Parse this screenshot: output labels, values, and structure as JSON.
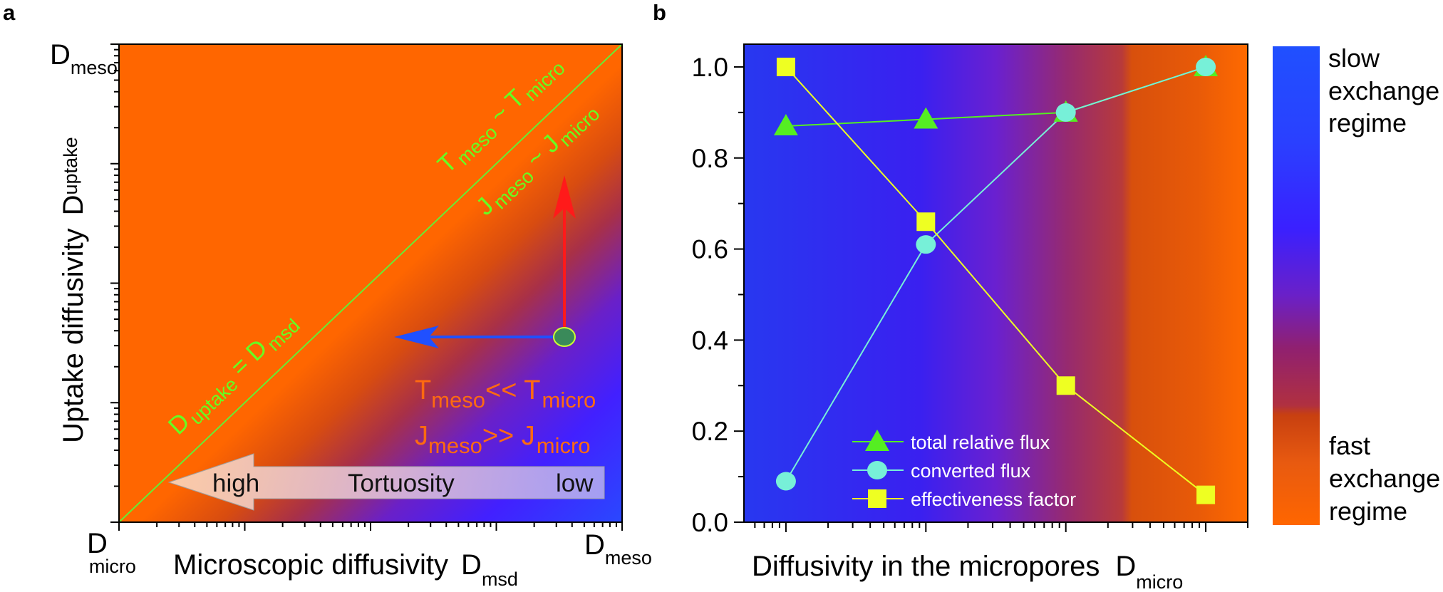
{
  "chart_data": [
    {
      "type": "heatmap",
      "panel_label": "a",
      "x_scale": "log",
      "y_scale": "log",
      "x_decades": 4,
      "y_decades": 4,
      "xlabel": {
        "text": "Microscopic diffusivity",
        "symbol": "D",
        "sub": "msd"
      },
      "ylabel": {
        "text": "Uptake diffusivity",
        "symbol": "D",
        "sub": "uptake"
      },
      "tick_labels": {
        "origin": {
          "symbol": "D",
          "sub": "micro"
        },
        "y_max": {
          "symbol": "D",
          "sub": "meso"
        },
        "x_max": {
          "symbol": "D",
          "sub": "meso"
        }
      },
      "diagonal_label": {
        "lhs": "D",
        "lhs_sub": "uptake",
        "eq": " = D",
        "rhs_sub": "msd"
      },
      "upper_label_T": {
        "a": "T",
        "a_sub": "meso",
        "mid": " ~ T",
        "b_sub": "micro"
      },
      "upper_label_J": {
        "a": "J",
        "a_sub": "meso",
        "mid": " ~ J",
        "b_sub": "micro"
      },
      "regime_T": {
        "a": "T",
        "a_sub": "meso",
        "mid": "<< T",
        "b_sub": "micro"
      },
      "regime_J": {
        "a": "J",
        "a_sub": "meso",
        "mid": ">> J",
        "b_sub": "micro"
      },
      "tortuosity_arrow": {
        "left": "high",
        "center": "Tortuosity",
        "right": "low"
      },
      "colors": {
        "fast": "#ff6600",
        "slow": "#2a40ff",
        "diagonal": "#66ee33",
        "red_arrow": "#ff1a1a",
        "blue_arrow": "#2050ff",
        "point": "#3a8a5a"
      }
    },
    {
      "type": "line",
      "panel_label": "b",
      "x_scale": "log",
      "x": [
        0,
        1,
        2,
        3
      ],
      "xlim": [
        -0.3,
        3.3
      ],
      "ylim": [
        0,
        1.05
      ],
      "y_ticks": [
        "0.0",
        "0.2",
        "0.4",
        "0.6",
        "0.8",
        "1.0"
      ],
      "xlabel": {
        "text": "Diffusivity in the micropores",
        "symbol": "D",
        "sub": "micro"
      },
      "legend_position": "bottom-center",
      "series": [
        {
          "name": "total relative flux",
          "marker": "triangle",
          "color": "#55ee22",
          "values": [
            0.87,
            0.885,
            0.9,
            1.0
          ]
        },
        {
          "name": "converted flux",
          "marker": "circle",
          "color": "#77f0d8",
          "values": [
            0.09,
            0.61,
            0.9,
            1.0
          ]
        },
        {
          "name": "effectiveness factor",
          "marker": "square",
          "color": "#eeff22",
          "values": [
            1.0,
            0.66,
            0.3,
            0.06
          ]
        }
      ],
      "colorbar": {
        "top_label": [
          "slow",
          "exchange",
          "regime"
        ],
        "bottom_label": [
          "fast",
          "exchange",
          "regime"
        ],
        "top_color": "#2050ff",
        "bottom_color": "#ff6600"
      }
    }
  ]
}
